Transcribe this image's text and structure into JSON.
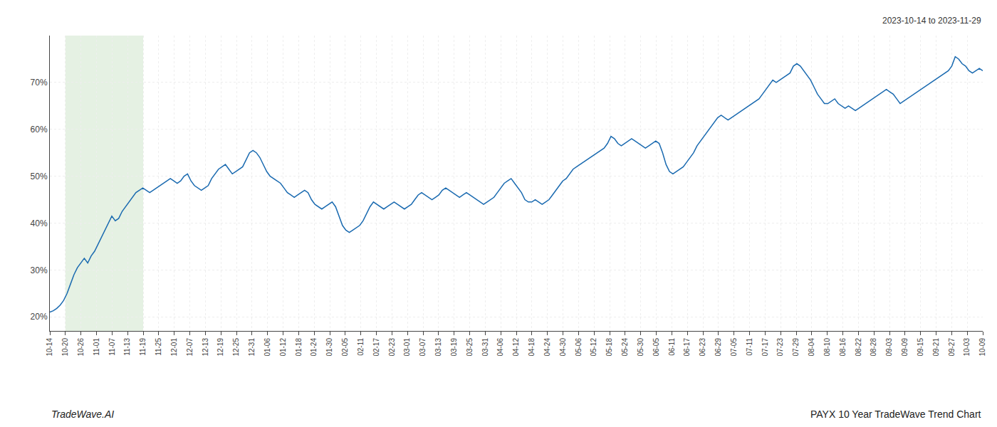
{
  "chart_data": {
    "type": "line",
    "annotations": [
      "2023-10-14 to 2023-11-29",
      "TradeWave.AI",
      "PAYX 10 Year TradeWave Trend Chart"
    ],
    "color": "#1a6ab0",
    "grid": true,
    "shade": {
      "start": 1,
      "end": 6,
      "color": "#d4e8d0"
    },
    "xlim": [
      0,
      60
    ],
    "xticks": [
      {
        "value": 0,
        "label": "10-14"
      },
      {
        "value": 1,
        "label": "10-20"
      },
      {
        "value": 2,
        "label": "10-26"
      },
      {
        "value": 3,
        "label": "11-01"
      },
      {
        "value": 4,
        "label": "11-07"
      },
      {
        "value": 5,
        "label": "11-13"
      },
      {
        "value": 6,
        "label": "11-19"
      },
      {
        "value": 7,
        "label": "11-25"
      },
      {
        "value": 8,
        "label": "12-01"
      },
      {
        "value": 9,
        "label": "12-07"
      },
      {
        "value": 10,
        "label": "12-13"
      },
      {
        "value": 11,
        "label": "12-19"
      },
      {
        "value": 12,
        "label": "12-25"
      },
      {
        "value": 13,
        "label": "12-31"
      },
      {
        "value": 14,
        "label": "01-06"
      },
      {
        "value": 15,
        "label": "01-12"
      },
      {
        "value": 16,
        "label": "01-18"
      },
      {
        "value": 17,
        "label": "01-24"
      },
      {
        "value": 18,
        "label": "01-30"
      },
      {
        "value": 19,
        "label": "02-05"
      },
      {
        "value": 20,
        "label": "02-11"
      },
      {
        "value": 21,
        "label": "02-17"
      },
      {
        "value": 22,
        "label": "02-23"
      },
      {
        "value": 23,
        "label": "03-01"
      },
      {
        "value": 24,
        "label": "03-07"
      },
      {
        "value": 25,
        "label": "03-13"
      },
      {
        "value": 26,
        "label": "03-19"
      },
      {
        "value": 27,
        "label": "03-25"
      },
      {
        "value": 28,
        "label": "03-31"
      },
      {
        "value": 29,
        "label": "04-06"
      },
      {
        "value": 30,
        "label": "04-12"
      },
      {
        "value": 31,
        "label": "04-18"
      },
      {
        "value": 32,
        "label": "04-24"
      },
      {
        "value": 33,
        "label": "04-30"
      },
      {
        "value": 34,
        "label": "05-06"
      },
      {
        "value": 35,
        "label": "05-12"
      },
      {
        "value": 36,
        "label": "05-18"
      },
      {
        "value": 37,
        "label": "05-24"
      },
      {
        "value": 38,
        "label": "05-30"
      },
      {
        "value": 39,
        "label": "06-05"
      },
      {
        "value": 40,
        "label": "06-11"
      },
      {
        "value": 41,
        "label": "06-17"
      },
      {
        "value": 42,
        "label": "06-23"
      },
      {
        "value": 43,
        "label": "06-29"
      },
      {
        "value": 44,
        "label": "07-05"
      },
      {
        "value": 45,
        "label": "07-11"
      },
      {
        "value": 46,
        "label": "07-17"
      },
      {
        "value": 47,
        "label": "07-23"
      },
      {
        "value": 48,
        "label": "07-29"
      },
      {
        "value": 49,
        "label": "08-04"
      },
      {
        "value": 50,
        "label": "08-10"
      },
      {
        "value": 51,
        "label": "08-16"
      },
      {
        "value": 52,
        "label": "08-22"
      },
      {
        "value": 53,
        "label": "08-28"
      },
      {
        "value": 54,
        "label": "09-03"
      },
      {
        "value": 55,
        "label": "09-09"
      },
      {
        "value": 56,
        "label": "09-15"
      },
      {
        "value": 57,
        "label": "09-21"
      },
      {
        "value": 58,
        "label": "09-27"
      },
      {
        "value": 59,
        "label": "10-03"
      },
      {
        "value": 60,
        "label": "10-09"
      }
    ],
    "ylim": [
      17,
      80
    ],
    "yticks": [
      {
        "value": 20,
        "label": "20%"
      },
      {
        "value": 30,
        "label": "30%"
      },
      {
        "value": 40,
        "label": "40%"
      },
      {
        "value": 50,
        "label": "50%"
      },
      {
        "value": 60,
        "label": "60%"
      },
      {
        "value": 70,
        "label": "70%"
      }
    ],
    "values": [
      21.0,
      21.3,
      21.8,
      22.5,
      23.5,
      25.0,
      27.0,
      29.0,
      30.5,
      31.5,
      32.5,
      31.5,
      33.0,
      34.0,
      35.5,
      37.0,
      38.5,
      40.0,
      41.5,
      40.5,
      41.0,
      42.5,
      43.5,
      44.5,
      45.5,
      46.5,
      47.0,
      47.5,
      47.0,
      46.5,
      47.0,
      47.5,
      48.0,
      48.5,
      49.0,
      49.5,
      49.0,
      48.5,
      49.0,
      50.0,
      50.5,
      49.0,
      48.0,
      47.5,
      47.0,
      47.5,
      48.0,
      49.5,
      50.5,
      51.5,
      52.0,
      52.5,
      51.5,
      50.5,
      51.0,
      51.5,
      52.0,
      53.5,
      55.0,
      55.5,
      55.0,
      54.0,
      52.5,
      51.0,
      50.0,
      49.5,
      49.0,
      48.5,
      47.5,
      46.5,
      46.0,
      45.5,
      46.0,
      46.5,
      47.0,
      46.5,
      45.0,
      44.0,
      43.5,
      43.0,
      43.5,
      44.0,
      44.5,
      43.5,
      41.5,
      39.5,
      38.5,
      38.0,
      38.5,
      39.0,
      39.5,
      40.5,
      42.0,
      43.5,
      44.5,
      44.0,
      43.5,
      43.0,
      43.5,
      44.0,
      44.5,
      44.0,
      43.5,
      43.0,
      43.5,
      44.0,
      45.0,
      46.0,
      46.5,
      46.0,
      45.5,
      45.0,
      45.5,
      46.0,
      47.0,
      47.5,
      47.0,
      46.5,
      46.0,
      45.5,
      46.0,
      46.5,
      46.0,
      45.5,
      45.0,
      44.5,
      44.0,
      44.5,
      45.0,
      45.5,
      46.5,
      47.5,
      48.5,
      49.0,
      49.5,
      48.5,
      47.5,
      46.5,
      45.0,
      44.5,
      44.5,
      45.0,
      44.5,
      44.0,
      44.5,
      45.0,
      46.0,
      47.0,
      48.0,
      49.0,
      49.5,
      50.5,
      51.5,
      52.0,
      52.5,
      53.0,
      53.5,
      54.0,
      54.5,
      55.0,
      55.5,
      56.0,
      57.0,
      58.5,
      58.0,
      57.0,
      56.5,
      57.0,
      57.5,
      58.0,
      57.5,
      57.0,
      56.5,
      56.0,
      56.5,
      57.0,
      57.5,
      57.0,
      55.0,
      52.5,
      51.0,
      50.5,
      51.0,
      51.5,
      52.0,
      53.0,
      54.0,
      55.0,
      56.5,
      57.5,
      58.5,
      59.5,
      60.5,
      61.5,
      62.5,
      63.0,
      62.5,
      62.0,
      62.5,
      63.0,
      63.5,
      64.0,
      64.5,
      65.0,
      65.5,
      66.0,
      66.5,
      67.5,
      68.5,
      69.5,
      70.5,
      70.0,
      70.5,
      71.0,
      71.5,
      72.0,
      73.5,
      74.0,
      73.5,
      72.5,
      71.5,
      70.5,
      69.0,
      67.5,
      66.5,
      65.5,
      65.5,
      66.0,
      66.5,
      65.5,
      65.0,
      64.5,
      65.0,
      64.5,
      64.0,
      64.5,
      65.0,
      65.5,
      66.0,
      66.5,
      67.0,
      67.5,
      68.0,
      68.5,
      68.0,
      67.5,
      66.5,
      65.5,
      66.0,
      66.5,
      67.0,
      67.5,
      68.0,
      68.5,
      69.0,
      69.5,
      70.0,
      70.5,
      71.0,
      71.5,
      72.0,
      72.5,
      73.5,
      75.5,
      75.0,
      74.0,
      73.5,
      72.5,
      72.0,
      72.5,
      73.0,
      72.5
    ]
  }
}
